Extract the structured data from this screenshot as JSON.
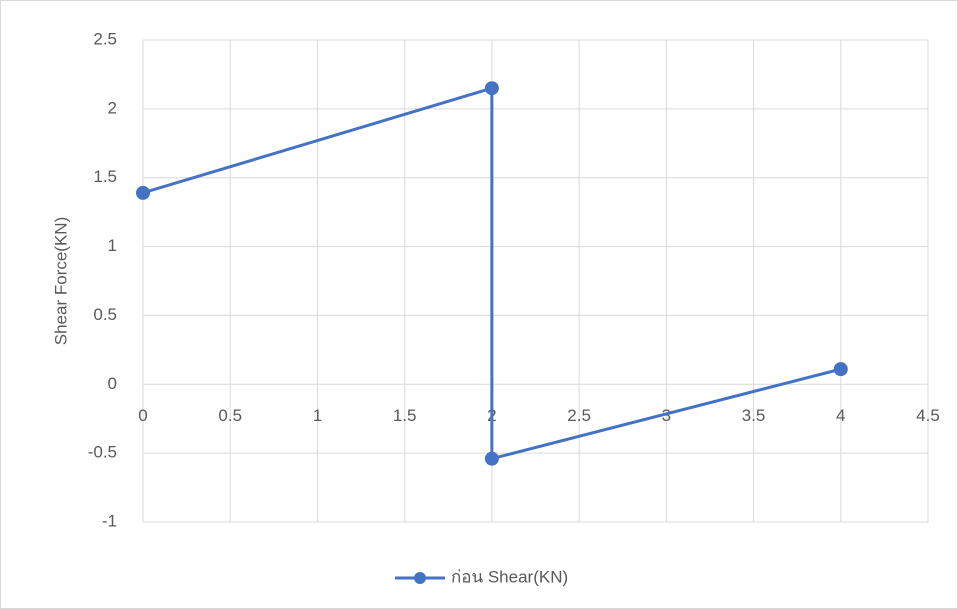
{
  "chart_data": {
    "type": "line",
    "y_label": "Shear Force(KN)",
    "x": [
      0,
      2,
      2,
      4
    ],
    "series": [
      {
        "name": "ก่อน Shear(KN)",
        "color": "#4472c4",
        "values": [
          1.39,
          2.15,
          -0.54,
          0.11
        ]
      }
    ],
    "xlim": [
      0,
      4.5
    ],
    "xticks": [
      0,
      0.5,
      1,
      1.5,
      2,
      2.5,
      3,
      3.5,
      4,
      4.5
    ],
    "ylim": [
      -1,
      2.5
    ],
    "yticks": [
      -1,
      -0.5,
      0,
      0.5,
      1,
      1.5,
      2,
      2.5
    ],
    "grid": true,
    "legend": "bottom"
  }
}
